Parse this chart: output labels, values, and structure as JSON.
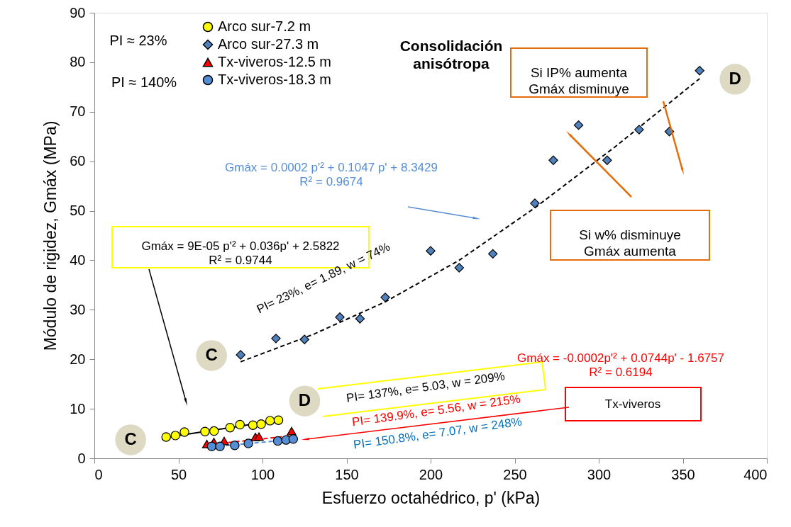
{
  "chart_data": {
    "type": "scatter",
    "title": "Consolidación anisótropa",
    "xlabel": "Esfuerzo octahédrico, p' (kPa)",
    "ylabel": "Módulo de rigidez, Gmáx (MPa)",
    "xlim": [
      0,
      400
    ],
    "xticks": [
      0,
      50,
      100,
      150,
      200,
      250,
      300,
      350,
      400
    ],
    "ylim": [
      0,
      90
    ],
    "yticks": [
      0,
      10,
      20,
      30,
      40,
      50,
      60,
      70,
      80,
      90
    ],
    "grid": false,
    "legend": "top left",
    "series": [
      {
        "name": "Arco sur-7.2 m",
        "marker": "circle",
        "color": "#ffff00",
        "x": [
          42.7,
          48.2,
          53.6,
          65.8,
          71.2,
          80.7,
          86.6,
          94.3,
          99.2,
          104.5,
          109.5
        ],
        "values": [
          4.3,
          4.6,
          5.3,
          5.4,
          5.5,
          6.2,
          6.8,
          6.7,
          6.9,
          7.6,
          7.7
        ]
      },
      {
        "name": "Arco sur-27.3 m",
        "marker": "diamond",
        "color": "#4f81bd",
        "x": [
          87,
          108,
          125,
          146,
          158,
          173,
          200,
          217,
          237,
          262,
          273,
          288,
          305,
          324,
          342,
          360
        ],
        "values": [
          20.9,
          24.2,
          24.0,
          28.5,
          28.2,
          32.5,
          41.9,
          38.5,
          41.3,
          51.5,
          60.2,
          67.3,
          60.2,
          66.4,
          66.0,
          78.3
        ]
      },
      {
        "name": "Tx-viveros-12.5 m",
        "marker": "triangle",
        "color": "#ff0000",
        "x": [
          66.9,
          71.1,
          77.2,
          95.8,
          97.9,
          117.3
        ],
        "values": [
          2.9,
          3.3,
          3.5,
          4.3,
          4.4,
          5.5
        ]
      },
      {
        "name": "Tx-viveros-18.3 m",
        "marker": "circle",
        "color": "#558ed5",
        "x": [
          69.8,
          74.7,
          83.5,
          91.6,
          109.1,
          114,
          118.3
        ],
        "values": [
          2.4,
          2.4,
          2.6,
          3.0,
          3.5,
          3.7,
          3.9
        ]
      },
      {
        "type": "line",
        "color": "#000000",
        "line_style": "solid",
        "marker": "none",
        "x": [
          42.7,
          109.5
        ],
        "values": [
          4.2,
          7.7
        ]
      },
      {
        "type": "line",
        "color": "#000000",
        "line_style": "dashed",
        "marker": "none",
        "x": [
          87,
          130,
          173,
          217,
          262,
          310,
          360
        ],
        "values": [
          19.5,
          25.0,
          31.6,
          40.0,
          50.6,
          63.0,
          76.7
        ]
      },
      {
        "type": "line",
        "color": "#ff0000",
        "line_style": "dashed",
        "marker": "none",
        "x": [
          67,
          118
        ],
        "values": [
          2.7,
          4.6
        ]
      },
      {
        "type": "line",
        "color": "#558ed5",
        "line_style": "dashed",
        "marker": "none",
        "x": [
          70,
          118
        ],
        "values": [
          2.3,
          3.8
        ]
      }
    ],
    "annotations": [
      "PI ≈  23%",
      "PI ≈ 140%",
      "Si IP%  aumenta\nGmáx disminuye",
      "Si w%  disminuye\nGmáx aumenta",
      "Gmáx = 0.0002 p'² + 0.1047 p' + 8.3429\nR² = 0.9674",
      "Gmáx = 9E-05 p'² + 0.036p' + 2.5822\nR² = 0.9744",
      "Gmáx = -0.0002p'² + 0.0744p' - 1.6757\nR² = 0.6194",
      "PI= 23%, e= 1.89, w = 74%",
      "PI= 137%, e= 5.03, w = 209%",
      "PI= 139.9%, e= 5.56, w = 215%",
      "PI= 150.8%, e= 7.07, w = 248%",
      "Tx-viveros",
      {
        "text": "C",
        "x": 87,
        "y": 20.9
      },
      {
        "text": "D",
        "x": 360,
        "y": 78.3
      },
      {
        "text": "C",
        "x": 42.7,
        "y": 4.3
      },
      {
        "text": "D",
        "x": 109.5,
        "y": 7.7
      }
    ]
  }
}
